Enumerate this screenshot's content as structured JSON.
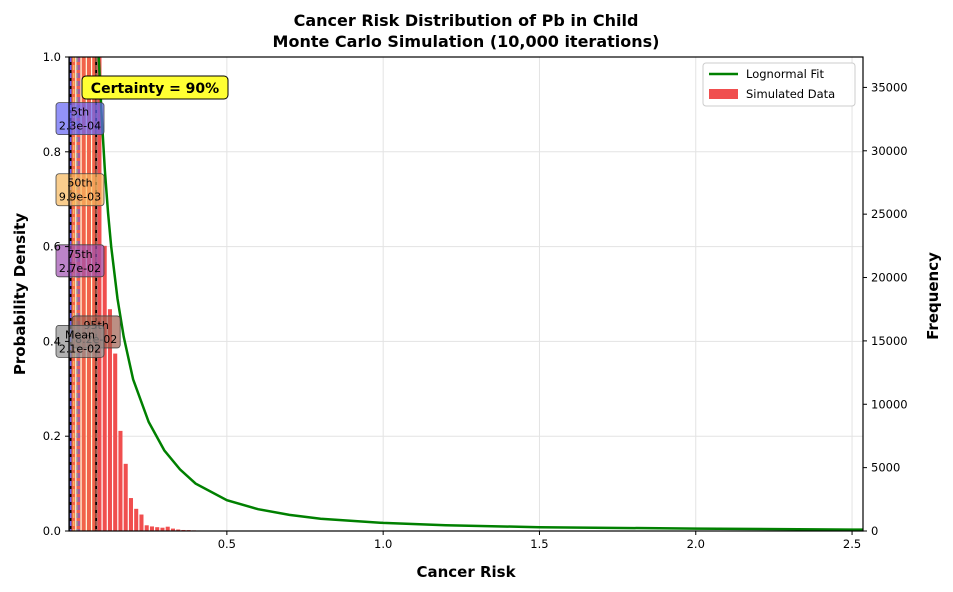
{
  "chart_data": {
    "type": "bar",
    "title": "Cancer Risk Distribution of Pb in Child",
    "subtitle": "Monte Carlo Simulation (10,000 iterations)",
    "xlabel": "Cancer Risk",
    "ylabel_left": "Probability Density",
    "ylabel_right": "Frequency",
    "xlim": [
      -0.005,
      2.535
    ],
    "ylim_left": [
      0,
      1.0
    ],
    "ylim_right": [
      0,
      37400
    ],
    "x_ticks": [
      0.5,
      1.0,
      1.5,
      2.0,
      2.5
    ],
    "x_tick_labels": [
      "0.5",
      "1.0",
      "1.5",
      "2.0",
      "2.5"
    ],
    "y_left_ticks": [
      0.0,
      0.2,
      0.4,
      0.6,
      0.8,
      1.0
    ],
    "y_left_tick_labels": [
      "0.0",
      "0.2",
      "0.4",
      "0.6",
      "0.8",
      "1.0"
    ],
    "y_right_ticks": [
      0,
      5000,
      10000,
      15000,
      20000,
      25000,
      30000,
      35000
    ],
    "y_right_tick_labels": [
      "0",
      "5000",
      "10000",
      "15000",
      "20000",
      "25000",
      "30000",
      "35000"
    ],
    "grid": true,
    "legend_position": "top-right",
    "legend": [
      {
        "label": "Lognormal Fit",
        "color": "#008000",
        "kind": "line"
      },
      {
        "label": "Simulated Data",
        "color": "#f04e4e",
        "kind": "patch"
      }
    ],
    "histogram": {
      "name": "Simulated Data",
      "color": "#f04e4e",
      "bin_width": 0.0168,
      "bin_starts": [
        0.0,
        0.0168,
        0.0336,
        0.0504,
        0.0672,
        0.084,
        0.1008,
        0.1176,
        0.1344,
        0.1512,
        0.168,
        0.1848,
        0.2016,
        0.2184,
        0.2352,
        0.252,
        0.2688,
        0.2856,
        0.3024,
        0.3192,
        0.336,
        0.3528,
        0.3696,
        0.3864,
        0.4032,
        0.42,
        0.4368
      ],
      "frequencies": [
        37400,
        37400,
        37400,
        37400,
        37400,
        37400,
        22500,
        17500,
        14000,
        7900,
        5300,
        2600,
        1750,
        1300,
        450,
        360,
        300,
        260,
        340,
        190,
        120,
        80,
        70,
        50,
        40,
        30,
        20
      ]
    },
    "fit_curve": {
      "name": "Lognormal Fit",
      "color": "#008000",
      "x": [
        0.09,
        0.1,
        0.11,
        0.12,
        0.13,
        0.15,
        0.17,
        0.2,
        0.25,
        0.3,
        0.35,
        0.4,
        0.5,
        0.6,
        0.7,
        0.8,
        1.0,
        1.2,
        1.5,
        2.0,
        2.5,
        2.535
      ],
      "y": [
        1.0,
        0.87,
        0.76,
        0.67,
        0.6,
        0.49,
        0.41,
        0.32,
        0.23,
        0.17,
        0.13,
        0.1,
        0.065,
        0.046,
        0.034,
        0.026,
        0.017,
        0.012,
        0.008,
        0.005,
        0.003,
        0.003
      ]
    },
    "percentile_lines": [
      {
        "name": "5th",
        "value": 0.00023,
        "label": "5th",
        "value_label": "2.3e-04",
        "color": "#6464f5",
        "label_y": 0.87
      },
      {
        "name": "50th",
        "value": 0.0099,
        "label": "50th",
        "value_label": "9.9e-03",
        "color": "#f7b85c",
        "label_y": 0.72
      },
      {
        "name": "75th",
        "value": 0.027,
        "label": "75th",
        "value_label": "2.7e-02",
        "color": "#a050b0",
        "label_y": 0.57
      },
      {
        "name": "95th",
        "value": 0.082,
        "label": "95th",
        "value_label": "8.2e-02",
        "color": "#a06050",
        "label_y": 0.42
      },
      {
        "name": "Mean",
        "value": 0.021,
        "label": "Mean",
        "value_label": "2.1e-02",
        "color": "#909090",
        "label_y": 0.4
      }
    ],
    "certainty": {
      "text": "Certainty = 90%",
      "low": 0.0,
      "high": 0.082,
      "color": "#ffff33"
    }
  }
}
